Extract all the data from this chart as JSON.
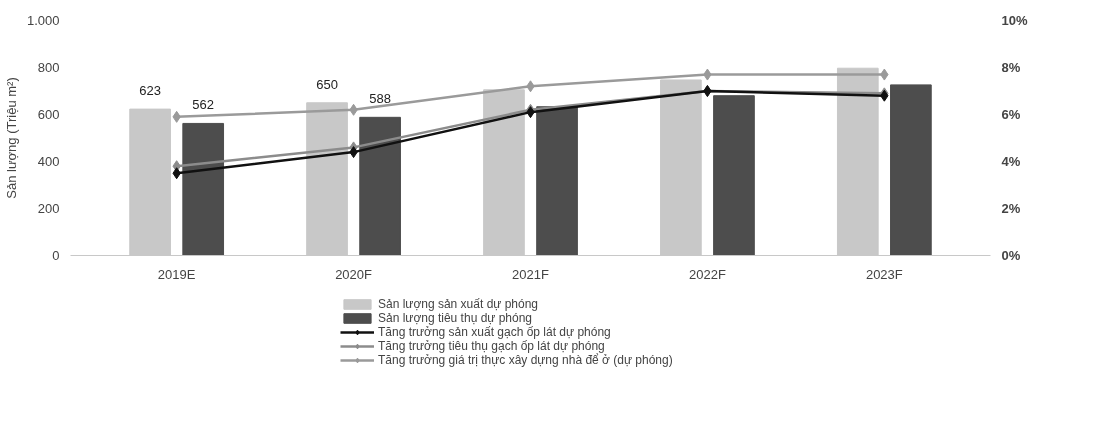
{
  "chart_data": {
    "type": "bar",
    "ylabel": "Sản lượng (Triệu m²)",
    "categories": [
      "2019E",
      "2020F",
      "2021F",
      "2022F",
      "2023F"
    ],
    "series": [
      {
        "name": "Sản lượng sản xuất dự phóng",
        "color": "#c8c8c8",
        "values": [
          623,
          650,
          705,
          747,
          797
        ],
        "value_labels": [
          "623",
          "650",
          null,
          null,
          null
        ]
      },
      {
        "name": "Sản lượng tiêu thụ dự phóng",
        "color": "#4d4d4d",
        "values": [
          562,
          588,
          633,
          680,
          726
        ],
        "value_labels": [
          "562",
          "588",
          null,
          null,
          null
        ]
      },
      {
        "name": "Tăng trưởng sản xuất gạch ốp lát dự phóng",
        "type": "line",
        "axis": "y2",
        "color": "#111111",
        "marker": "diamond",
        "values": [
          3.5,
          4.4,
          6.1,
          7.0,
          6.8
        ]
      },
      {
        "name": "Tăng trưởng tiêu thụ gạch ốp lát dự phóng",
        "type": "line",
        "axis": "y2",
        "color": "#8c8c8c",
        "marker": "diamond",
        "values": [
          3.8,
          4.6,
          6.2,
          7.0,
          6.9
        ]
      },
      {
        "name": "Tăng trưởng giá trị thực xây dựng nhà để ở (dự phóng)",
        "type": "line",
        "axis": "y2",
        "color": "#9a9a9a",
        "marker": "diamond",
        "values": [
          5.9,
          6.2,
          7.2,
          7.7,
          7.7
        ]
      }
    ],
    "ylim": [
      0,
      1000
    ],
    "yticks": [
      0,
      200,
      400,
      600,
      800,
      {
        "value": 1000,
        "label": "1.000"
      }
    ],
    "y2lim": [
      0,
      10
    ],
    "y2ticks": [
      {
        "value": 0,
        "label": "0%"
      },
      {
        "value": 2,
        "label": "2%"
      },
      {
        "value": 4,
        "label": "4%"
      },
      {
        "value": 6,
        "label": "6%"
      },
      {
        "value": 8,
        "label": "8%"
      },
      {
        "value": 10,
        "label": "10%"
      }
    ],
    "grid": false,
    "legend": "bottom"
  }
}
